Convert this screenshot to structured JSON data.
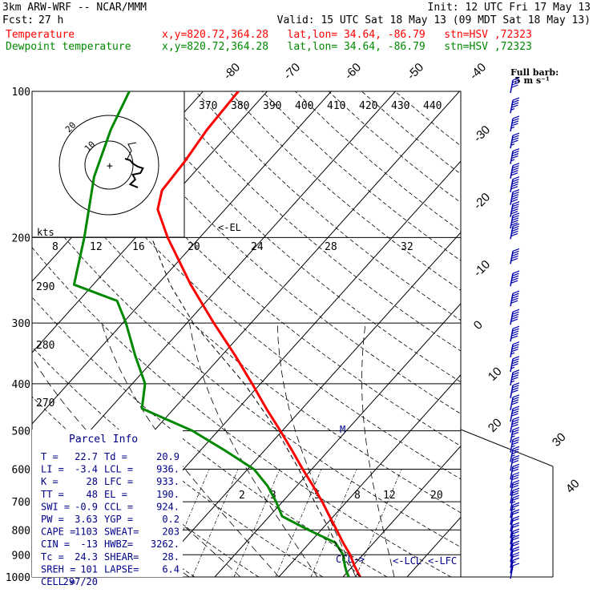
{
  "header": {
    "model": "3km ARW-WRF -- NCAR/MMM",
    "init": "Init: 12 UTC Fri 17 May 13",
    "fcst_label": "Fcst:",
    "fcst_value": "27 h",
    "valid": "Valid: 15 UTC Sat 18 May 13 (09 MDT Sat 18 May 13)",
    "legend": [
      {
        "name": "Temperature",
        "color": "#ff0000",
        "info": "x,y=820.72,364.28   lat,lon= 34.64, -86.79   stn=HSV ,72323"
      },
      {
        "name": "Dewpoint temperature",
        "color": "#008800",
        "info": "x,y=820.72,364.28   lat,lon= 34.64, -86.79   stn=HSV ,72323"
      }
    ]
  },
  "barb_legend": {
    "line1": "Full barb:",
    "line2": "5 m s⁻¹"
  },
  "parcel_info": {
    "title": "Parcel Info",
    "rows": [
      [
        "T  =",
        "22.7",
        "Td  =",
        "20.9"
      ],
      [
        "LI =",
        "-3.4",
        "LCL =",
        "936."
      ],
      [
        "K  =",
        "28",
        "LFC =",
        "933."
      ],
      [
        "TT =",
        "48",
        "EL  =",
        "190."
      ],
      [
        "SWI =",
        "-0.9",
        "CCL =",
        "924."
      ],
      [
        "PW =",
        "3.63",
        "YGP =",
        "0.2"
      ],
      [
        "CAPE =",
        "1103",
        "SWEAT=",
        "203"
      ],
      [
        "CIN =",
        "-13",
        "HWBZ=",
        "3262."
      ],
      [
        "Tc =",
        "24.3",
        "SHEAR=",
        "28."
      ],
      [
        "SREH =",
        "101",
        "LAPSE=",
        "6.4"
      ],
      [
        "CELL =",
        "297/20",
        "",
        ""
      ]
    ]
  },
  "hodograph": {
    "speed_unit": "kts",
    "ring_labels": [
      "10",
      "20"
    ],
    "points": [
      [
        0,
        -2
      ],
      [
        4,
        -4
      ],
      [
        6,
        -8
      ],
      [
        8,
        -10
      ],
      [
        10,
        -12
      ],
      [
        14,
        -14
      ],
      [
        12,
        -20
      ],
      [
        6,
        -22
      ],
      [
        8,
        -28
      ],
      [
        4,
        -34
      ],
      [
        10,
        -38
      ]
    ]
  },
  "chart_data": {
    "type": "skew-t log-p",
    "pressure_levels": [
      100,
      200,
      300,
      400,
      500,
      600,
      700,
      800,
      900,
      1000
    ],
    "temperature_labels": [
      "-80",
      "-70",
      "-60",
      "-50",
      "-40",
      "-30",
      "-20",
      "-10",
      "0",
      "10",
      "20",
      "30",
      "40"
    ],
    "theta_labels": [
      "370",
      "380",
      "390",
      "400",
      "410",
      "420",
      "430",
      "440"
    ],
    "theta_e_labels": [
      "290",
      "280",
      "270"
    ],
    "mixing_ratio_labels": [
      "2",
      "3",
      "5",
      "8",
      "12",
      "20"
    ],
    "wet_bulb_labels": [
      "8",
      "12",
      "16",
      "20",
      "24",
      "28",
      "32"
    ],
    "annotations": [
      "<-EL",
      "CCL->",
      "<-LCL",
      "<-LFC",
      "M"
    ],
    "series": [
      {
        "name": "Temperature",
        "color": "#ff0000",
        "points": [
          [
            1000,
            22.7
          ],
          [
            975,
            21.5
          ],
          [
            950,
            20.3
          ],
          [
            900,
            18.0
          ],
          [
            850,
            15.2
          ],
          [
            800,
            12.4
          ],
          [
            750,
            9.4
          ],
          [
            700,
            6.2
          ],
          [
            650,
            2.6
          ],
          [
            600,
            -1.4
          ],
          [
            550,
            -5.6
          ],
          [
            500,
            -10.3
          ],
          [
            450,
            -15.6
          ],
          [
            400,
            -21.3
          ],
          [
            350,
            -27.9
          ],
          [
            300,
            -35.8
          ],
          [
            250,
            -44.8
          ],
          [
            200,
            -55.0
          ],
          [
            175,
            -60.5
          ],
          [
            160,
            -62.5
          ],
          [
            140,
            -63.0
          ],
          [
            120,
            -64.0
          ],
          [
            100,
            -64.5
          ]
        ]
      },
      {
        "name": "Dewpoint temperature",
        "color": "#008800",
        "points": [
          [
            1000,
            20.9
          ],
          [
            975,
            19.8
          ],
          [
            950,
            18.8
          ],
          [
            900,
            16.9
          ],
          [
            850,
            14.0
          ],
          [
            800,
            8.0
          ],
          [
            750,
            2.0
          ],
          [
            700,
            -1.0
          ],
          [
            650,
            -4.5
          ],
          [
            600,
            -9.0
          ],
          [
            550,
            -16.0
          ],
          [
            500,
            -24.0
          ],
          [
            450,
            -35.0
          ],
          [
            400,
            -38.0
          ],
          [
            350,
            -43.5
          ],
          [
            300,
            -49.5
          ],
          [
            270,
            -54.0
          ],
          [
            250,
            -63.0
          ],
          [
            200,
            -68.0
          ],
          [
            150,
            -75.0
          ],
          [
            120,
            -79.0
          ],
          [
            100,
            -81.5
          ]
        ]
      }
    ],
    "wind_barbs": {
      "unit": "m s-1",
      "pressures": [
        1000,
        975,
        950,
        925,
        900,
        875,
        850,
        825,
        800,
        775,
        750,
        725,
        700,
        675,
        650,
        625,
        600,
        575,
        550,
        525,
        500,
        475,
        450,
        425,
        400,
        375,
        350,
        325,
        300,
        275,
        250,
        225,
        200,
        190,
        180,
        170,
        160,
        150,
        140,
        130,
        120,
        110,
        100
      ],
      "speeds": [
        5,
        8,
        10,
        11,
        12,
        12,
        13,
        12,
        12,
        12,
        13,
        14,
        15,
        15,
        16,
        17,
        17,
        18,
        18,
        19,
        20,
        21,
        22,
        22,
        23,
        24,
        24,
        25,
        25,
        26,
        26,
        26,
        27,
        26,
        26,
        25,
        25,
        25,
        24,
        24,
        23,
        23,
        22
      ]
    }
  }
}
